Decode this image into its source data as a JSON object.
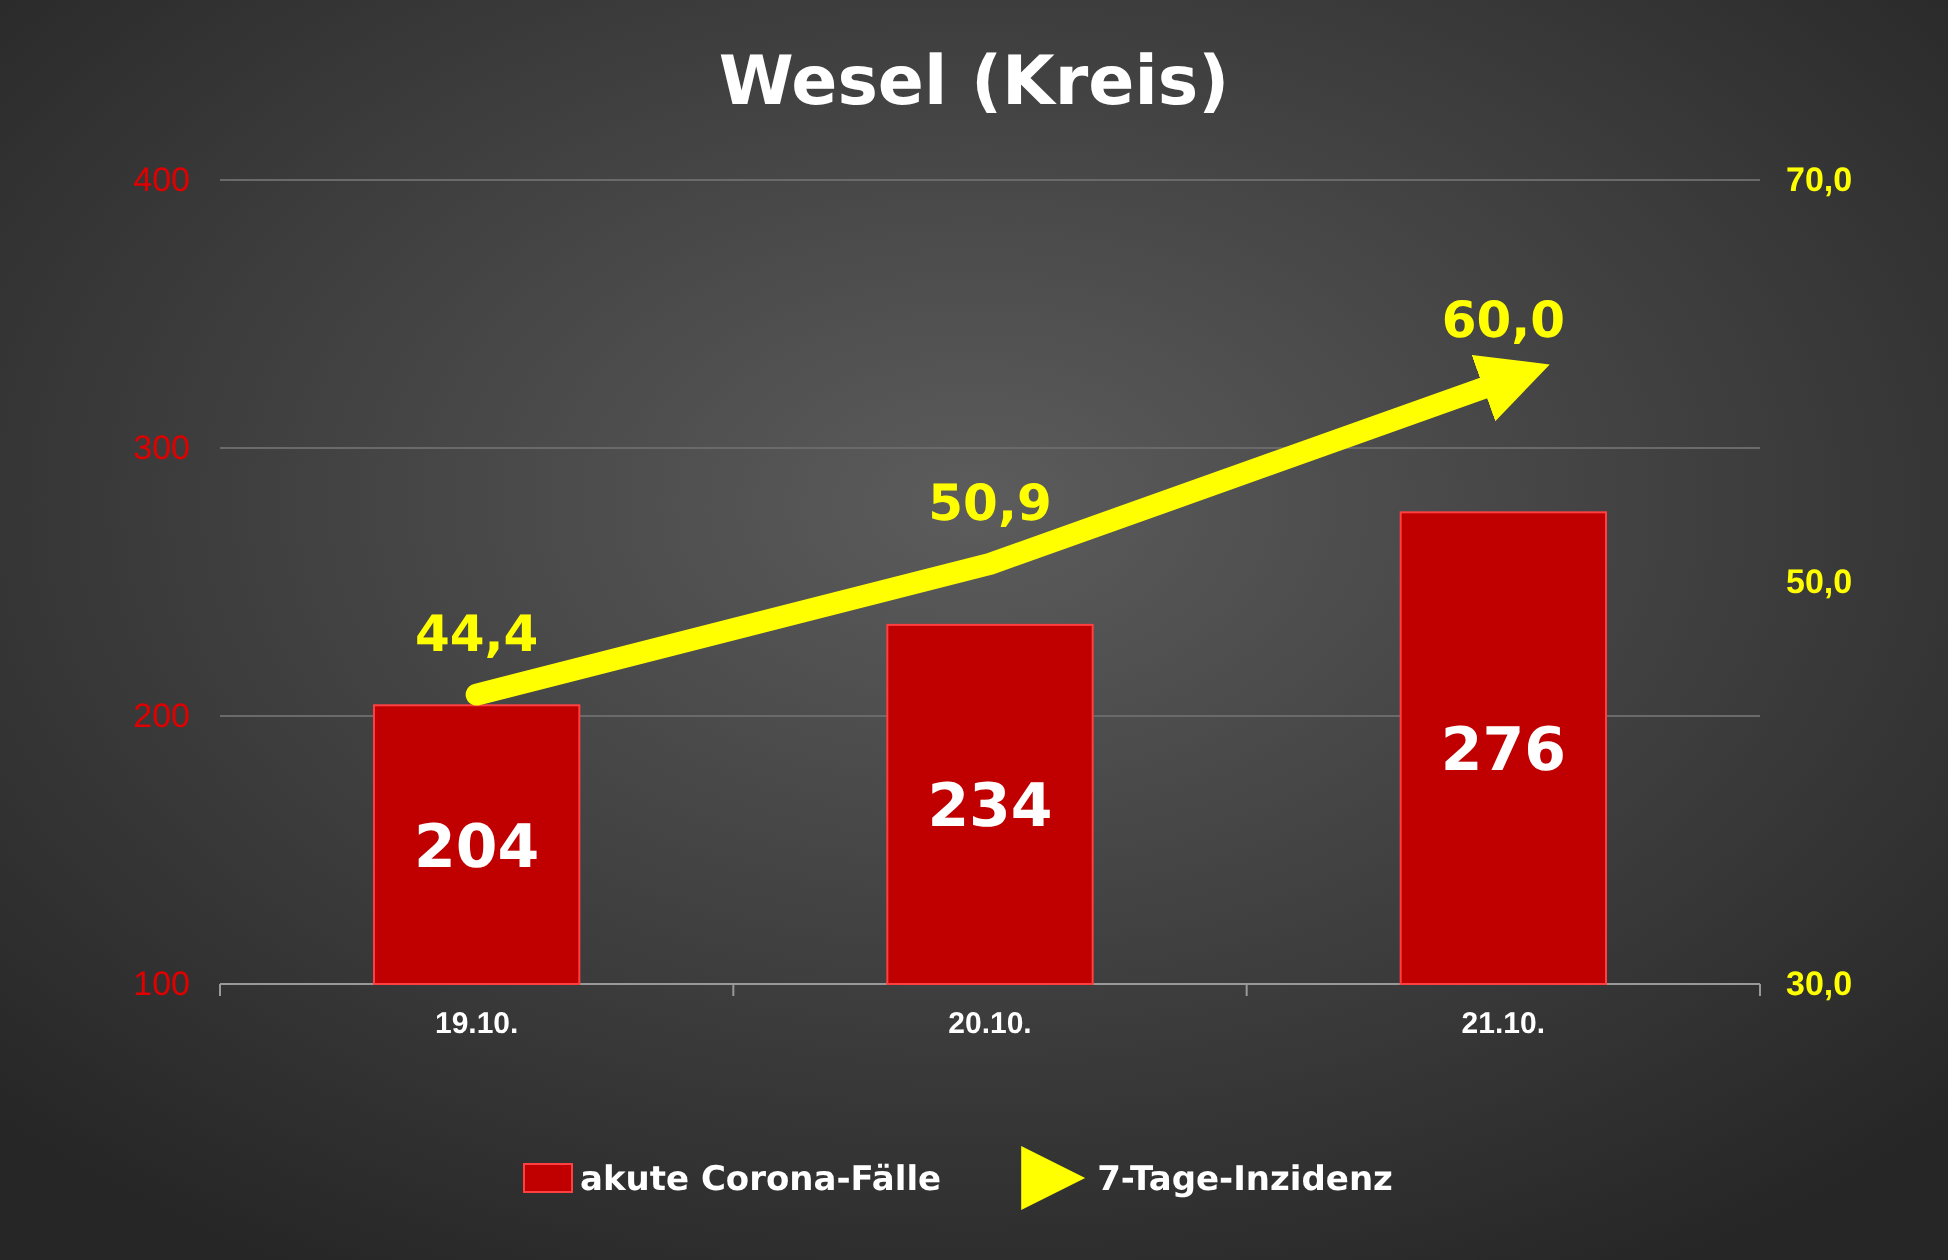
{
  "chart_data": {
    "type": "bar",
    "title": "Wesel (Kreis)",
    "categories": [
      "19.10.",
      "20.10.",
      "21.10."
    ],
    "series": [
      {
        "name": "akute Corona-Fälle",
        "color": "#c00000",
        "values": [
          204,
          234,
          276
        ],
        "value_labels": [
          "204",
          "234",
          "276"
        ]
      },
      {
        "name": "7-Tage-Inzidenz",
        "type": "line",
        "axis": "y2",
        "color": "#ffff00",
        "values": [
          44.4,
          50.9,
          60.0
        ],
        "value_labels": [
          "44,4",
          "50,9",
          "60,0"
        ]
      }
    ],
    "ylim": [
      100,
      400
    ],
    "yticks": [
      100,
      200,
      300,
      400
    ],
    "y2lim": [
      30,
      70
    ],
    "y2ticks": [
      {
        "value": 30,
        "label": "30,0"
      },
      {
        "value": 50,
        "label": "50,0"
      },
      {
        "value": 70,
        "label": "70,0"
      }
    ],
    "grid": "y",
    "legend": "bottom"
  }
}
